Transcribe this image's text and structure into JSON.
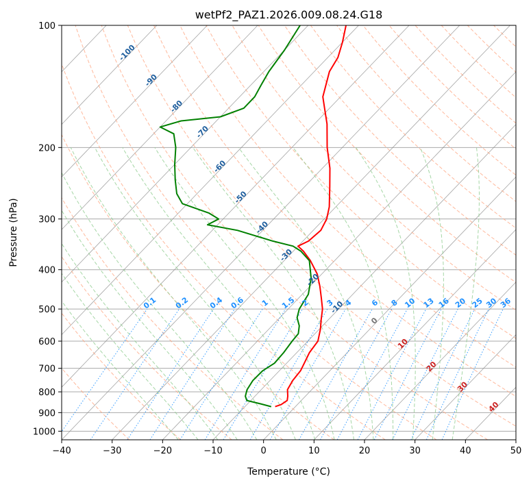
{
  "chart_data": {
    "type": "line",
    "title": "wetPf2_PAZ1.2026.009.08.24.G18",
    "xlabel": "Temperature (°C)",
    "ylabel": "Pressure (hPa)",
    "xlim": [
      -40,
      50
    ],
    "ylim": [
      1050,
      100
    ],
    "y_scale": "log",
    "x_ticks": [
      -40,
      -30,
      -20,
      -10,
      0,
      10,
      20,
      30,
      40,
      50
    ],
    "y_ticks": [
      100,
      200,
      300,
      400,
      500,
      600,
      700,
      800,
      900,
      1000
    ],
    "grid": true,
    "skew": true,
    "series": [
      {
        "type": "temperature",
        "color": "#ff0000",
        "points": [
          {
            "p": 870,
            "t": -4.0
          },
          {
            "p": 860,
            "t": -3.2
          },
          {
            "p": 840,
            "t": -2.8
          },
          {
            "p": 820,
            "t": -3.5
          },
          {
            "p": 790,
            "t": -4.8
          },
          {
            "p": 750,
            "t": -5.5
          },
          {
            "p": 710,
            "t": -5.8
          },
          {
            "p": 680,
            "t": -6.5
          },
          {
            "p": 640,
            "t": -7.5
          },
          {
            "p": 600,
            "t": -8.0
          },
          {
            "p": 560,
            "t": -9.8
          },
          {
            "p": 530,
            "t": -11.5
          },
          {
            "p": 500,
            "t": -13.2
          },
          {
            "p": 470,
            "t": -15.5
          },
          {
            "p": 440,
            "t": -18.0
          },
          {
            "p": 410,
            "t": -20.9
          },
          {
            "p": 380,
            "t": -24.8
          },
          {
            "p": 360,
            "t": -28.0
          },
          {
            "p": 350,
            "t": -30.0
          },
          {
            "p": 340,
            "t": -28.9
          },
          {
            "p": 320,
            "t": -28.5
          },
          {
            "p": 300,
            "t": -29.5
          },
          {
            "p": 280,
            "t": -31.3
          },
          {
            "p": 250,
            "t": -35.0
          },
          {
            "p": 225,
            "t": -38.5
          },
          {
            "p": 200,
            "t": -43.0
          },
          {
            "p": 175,
            "t": -47.5
          },
          {
            "p": 160,
            "t": -51.0
          },
          {
            "p": 150,
            "t": -53.5
          },
          {
            "p": 130,
            "t": -57.0
          },
          {
            "p": 120,
            "t": -58.0
          },
          {
            "p": 110,
            "t": -60.0
          },
          {
            "p": 100,
            "t": -62.5
          }
        ]
      },
      {
        "type": "dewpoint",
        "color": "#008000",
        "points": [
          {
            "p": 870,
            "t": -4.8
          },
          {
            "p": 855,
            "t": -7.7
          },
          {
            "p": 840,
            "t": -10.8
          },
          {
            "p": 820,
            "t": -11.9
          },
          {
            "p": 790,
            "t": -12.8
          },
          {
            "p": 750,
            "t": -13.4
          },
          {
            "p": 710,
            "t": -13.3
          },
          {
            "p": 680,
            "t": -12.4
          },
          {
            "p": 640,
            "t": -12.6
          },
          {
            "p": 600,
            "t": -13.1
          },
          {
            "p": 575,
            "t": -13.3
          },
          {
            "p": 550,
            "t": -14.6
          },
          {
            "p": 525,
            "t": -16.6
          },
          {
            "p": 500,
            "t": -17.8
          },
          {
            "p": 460,
            "t": -18.8
          },
          {
            "p": 420,
            "t": -21.3
          },
          {
            "p": 380,
            "t": -25.0
          },
          {
            "p": 360,
            "t": -28.5
          },
          {
            "p": 350,
            "t": -31.0
          },
          {
            "p": 340,
            "t": -36.0
          },
          {
            "p": 320,
            "t": -45.0
          },
          {
            "p": 310,
            "t": -52.0
          },
          {
            "p": 300,
            "t": -50.9
          },
          {
            "p": 290,
            "t": -54.0
          },
          {
            "p": 275,
            "t": -61.0
          },
          {
            "p": 260,
            "t": -64.0
          },
          {
            "p": 240,
            "t": -67.0
          },
          {
            "p": 220,
            "t": -70.0
          },
          {
            "p": 200,
            "t": -73.0
          },
          {
            "p": 185,
            "t": -76.0
          },
          {
            "p": 178,
            "t": -80.0
          },
          {
            "p": 172,
            "t": -77.0
          },
          {
            "p": 168,
            "t": -70.0
          },
          {
            "p": 160,
            "t": -67.0
          },
          {
            "p": 150,
            "t": -67.0
          },
          {
            "p": 140,
            "t": -68.0
          },
          {
            "p": 130,
            "t": -69.0
          },
          {
            "p": 115,
            "t": -70.0
          },
          {
            "p": 100,
            "t": -71.6
          }
        ]
      }
    ],
    "isotherm_labels": [
      -100,
      -90,
      -80,
      -70,
      -60,
      -50,
      -40,
      -30,
      -20,
      -10
    ],
    "mixing_ratio_labels": [
      "0.1",
      "0.2",
      "0.4",
      "0.6",
      "1",
      "1.5",
      "2",
      "3",
      "4",
      "6",
      "8",
      "10",
      "13",
      "16",
      "20",
      "25",
      "30",
      "36"
    ],
    "mixing_ratio_values": [
      0.1,
      0.2,
      0.4,
      0.6,
      1,
      1.5,
      2,
      3,
      4,
      6,
      8,
      10,
      13,
      16,
      20,
      25,
      30,
      36
    ],
    "warm_isotherm_labels": [
      0,
      10,
      20,
      30,
      40
    ],
    "colors": {
      "isotherm_labels": "#1f5f9e",
      "mixing_ratio_labels": "#1e90ff",
      "warm_labels": "#cc2222",
      "zero_label": "#777777",
      "dry_adiabats": "#ffa07a",
      "moist_adiabats": "#8fcc8f",
      "mixing_lines": "#1e90ff",
      "skew_lines": "#888888",
      "grid": "#aaaaaa"
    }
  }
}
